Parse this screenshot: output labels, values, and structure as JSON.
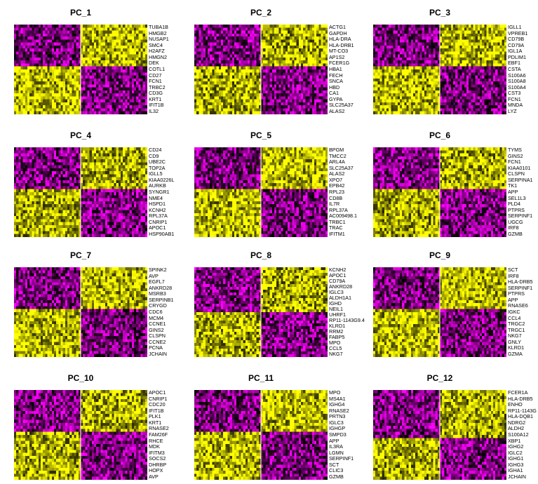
{
  "colors": {
    "low": "#ff00ff",
    "mid": "#000000",
    "high": "#ffff00"
  },
  "chart_data": [
    {
      "type": "heatmap",
      "title": "PC_1",
      "genes": [
        "TUBA1B",
        "HMGB2",
        "NUSAP1",
        "SMC4",
        "H2AFZ",
        "HMGN2",
        "DEK",
        "COTL1",
        "CD27",
        "FCN1",
        "TRBC2",
        "CD3G",
        "KRT1",
        "IFIT1B",
        "IL32"
      ],
      "top_genes": 7,
      "split": 0.5
    },
    {
      "type": "heatmap",
      "title": "PC_2",
      "genes": [
        "ACTG1",
        "GAPDH",
        "HLA-DRA",
        "HLA-DRB1",
        "MT-CO3",
        "AP1S2",
        "FCER1G",
        "HBA1",
        "FECH",
        "SNCA",
        "HBD",
        "CA1",
        "GYPA",
        "SLC25A37",
        "ALAS2"
      ],
      "top_genes": 7,
      "split": 0.5
    },
    {
      "type": "heatmap",
      "title": "PC_3",
      "genes": [
        "IGLL1",
        "VPREB1",
        "CD79B",
        "CD79A",
        "IGL1A",
        "PDLIM1",
        "EBF1",
        "CSTA",
        "S100A6",
        "S100A8",
        "S100A4",
        "CST3",
        "FCN1",
        "MNDA",
        "LYZ"
      ],
      "top_genes": 7,
      "split": 0.5
    },
    {
      "type": "heatmap",
      "title": "PC_4",
      "genes": [
        "CD24",
        "CD9",
        "UBE2C",
        "TOP2A",
        "IGLL5",
        "KIAA0226L",
        "AURKB",
        "SYNGR1",
        "NME4",
        "HSPD1",
        "KCNH2",
        "RPL37A",
        "CNRIP1",
        "APOC1",
        "HSP90AB1"
      ],
      "top_genes": 7,
      "split": 0.5
    },
    {
      "type": "heatmap",
      "title": "PC_5",
      "genes": [
        "BPGM",
        "TMCC2",
        "ARL4A",
        "SLC25A37",
        "ALAS2",
        "XPO7",
        "EPB42",
        "RPL23",
        "CD8B",
        "IL7R",
        "RPL37A",
        "AC009498.1",
        "TRBC1",
        "TRAC",
        "IFITM1"
      ],
      "top_genes": 7,
      "split": 0.5
    },
    {
      "type": "heatmap",
      "title": "PC_6",
      "genes": [
        "TYMS",
        "GINS2",
        "FCN1",
        "KIAA0101",
        "CLSPN",
        "SERPINA1",
        "TK1",
        "APP",
        "SEL1L3",
        "PLD4",
        "PTPRS",
        "SERPINF1",
        "UGCG",
        "IRF8",
        "GZMB"
      ],
      "top_genes": 7,
      "split": 0.5
    },
    {
      "type": "heatmap",
      "title": "PC_7",
      "genes": [
        "SPINK2",
        "AVP",
        "EGFL7",
        "ANKRD28",
        "MSRB3",
        "SERPINB1",
        "CRYGD",
        "CDC6",
        "MCM4",
        "CCNE1",
        "GINS2",
        "CLSPN",
        "CCNE2",
        "PCNA",
        "JCHAIN"
      ],
      "top_genes": 7,
      "split": 0.5
    },
    {
      "type": "heatmap",
      "title": "PC_8",
      "genes": [
        "KCNH2",
        "APOC1",
        "CD79A",
        "ANKRD28",
        "IGLC3",
        "ALDH1A1",
        "IGHD",
        "NEIL1",
        "UHRF1",
        "RP11-1143G9.4",
        "KLRD1",
        "RRM2",
        "FABP5",
        "MPO",
        "CCL5",
        "NKG7"
      ],
      "top_genes": 8,
      "split": 0.5
    },
    {
      "type": "heatmap",
      "title": "PC_9",
      "genes": [
        "SCT",
        "IRF8",
        "HLA-DRB5",
        "SERPINF1",
        "PTPRS",
        "APP",
        "RNASE6",
        "IGKC",
        "CCL4",
        "TRGC2",
        "TRGC1",
        "NKG7",
        "GNLY",
        "KLRD1",
        "GZMA"
      ],
      "top_genes": 7,
      "split": 0.5
    },
    {
      "type": "heatmap",
      "title": "PC_10",
      "genes": [
        "APOC1",
        "CNRIP1",
        "CDC20",
        "IFIT1B",
        "PLK1",
        "KRT1",
        "RNASE2",
        "FAM26F",
        "RHCE",
        "MDK",
        "IFITM3",
        "SOCS2",
        "DHRBP",
        "HOPX",
        "AVP"
      ],
      "top_genes": 7,
      "split": 0.5
    },
    {
      "type": "heatmap",
      "title": "PC_11",
      "genes": [
        "MPO",
        "MS4A1",
        "IGHG4",
        "RNASE2",
        "PRTN3",
        "IGLC3",
        "IGHGP",
        "SMPD3",
        "APP",
        "IL3RA",
        "LGMN",
        "SERPINF1",
        "SCT",
        "CLIC3",
        "GZMB"
      ],
      "top_genes": 7,
      "split": 0.5
    },
    {
      "type": "heatmap",
      "title": "PC_12",
      "genes": [
        "FCER1A",
        "HLA-DRB5",
        "ENHO",
        "RP11-1143G",
        "HLA-DQB1",
        "NDRG2",
        "ALDH2",
        "S100A12",
        "XBP1",
        "IGHG2",
        "IGLC2",
        "IGHG1",
        "IGHG3",
        "IGHA1",
        "JCHAIN"
      ],
      "top_genes": 8,
      "split": 0.5
    }
  ]
}
